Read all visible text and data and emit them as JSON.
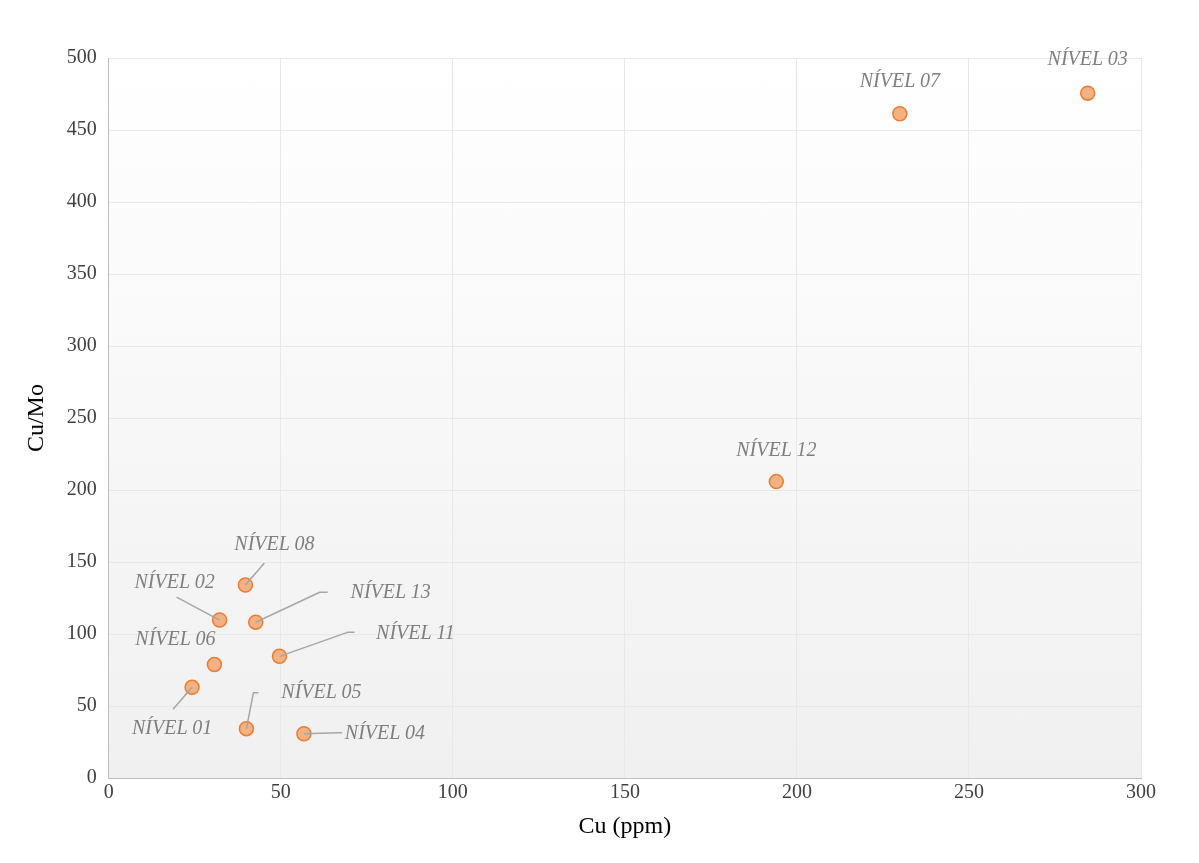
{
  "chart_data": {
    "type": "scatter",
    "xlabel": "Cu (ppm)",
    "ylabel": "Cu/Mo",
    "x": [
      284.5,
      229.9,
      194.0,
      39.7,
      32.2,
      42.7,
      49.6,
      30.7,
      24.2,
      40.0,
      56.7
    ],
    "values": [
      475.6,
      461.3,
      205.9,
      134.1,
      109.8,
      108.3,
      84.6,
      78.9,
      63.1,
      34.4,
      30.8
    ],
    "color": "#f4b183",
    "xlim": [
      0,
      300
    ],
    "xticks": [
      0,
      50,
      100,
      150,
      200,
      250,
      300
    ],
    "ylim": [
      0,
      500
    ],
    "yticks": [
      0,
      50,
      100,
      150,
      200,
      250,
      300,
      350,
      400,
      450,
      500
    ],
    "grid": true,
    "marker": "circle",
    "legend": false,
    "annotations": [
      {
        "text": "NÍVEL 03",
        "x": 284.5,
        "y": 475.6
      },
      {
        "text": "NÍVEL 07",
        "x": 229.9,
        "y": 461.3
      },
      {
        "text": "NÍVEL 12",
        "x": 194.0,
        "y": 205.9
      },
      {
        "text": "NÍVEL 08",
        "x": 39.7,
        "y": 134.1
      },
      {
        "text": "NÍVEL 02",
        "x": 32.2,
        "y": 109.8
      },
      {
        "text": "NÍVEL 13",
        "x": 42.7,
        "y": 108.3
      },
      {
        "text": "NÍVEL 11",
        "x": 49.6,
        "y": 84.6
      },
      {
        "text": "NÍVEL 06",
        "x": 30.7,
        "y": 78.9
      },
      {
        "text": "NÍVEL 01",
        "x": 24.2,
        "y": 63.1
      },
      {
        "text": "NÍVEL 05",
        "x": 40.0,
        "y": 34.4
      },
      {
        "text": "NÍVEL 04",
        "x": 56.7,
        "y": 30.8
      }
    ]
  }
}
